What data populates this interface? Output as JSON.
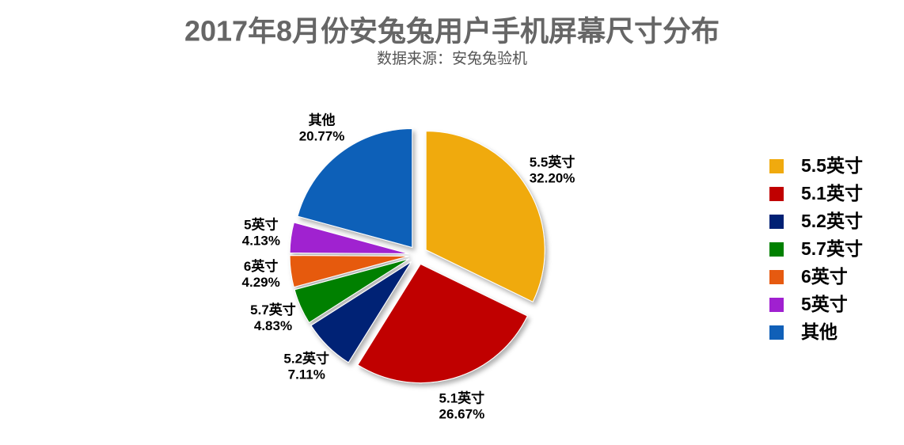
{
  "chart_data": {
    "type": "pie",
    "title": "2017年8月份安兔兔用户手机屏幕尺寸分布",
    "subtitle": "数据来源：安兔兔验机",
    "categories": [
      "5.5英寸",
      "5.1英寸",
      "5.2英寸",
      "5.7英寸",
      "6英寸",
      "5英寸",
      "其他"
    ],
    "values": [
      32.2,
      26.67,
      7.11,
      4.83,
      4.29,
      4.13,
      20.77
    ],
    "value_labels": [
      "32.20%",
      "26.67%",
      "7.11%",
      "4.83%",
      "4.29%",
      "4.13%",
      "20.77%"
    ],
    "colors": [
      "#f0aa0e",
      "#c00000",
      "#002074",
      "#008000",
      "#e65a10",
      "#a020d0",
      "#1060b8"
    ],
    "legend": "right"
  }
}
